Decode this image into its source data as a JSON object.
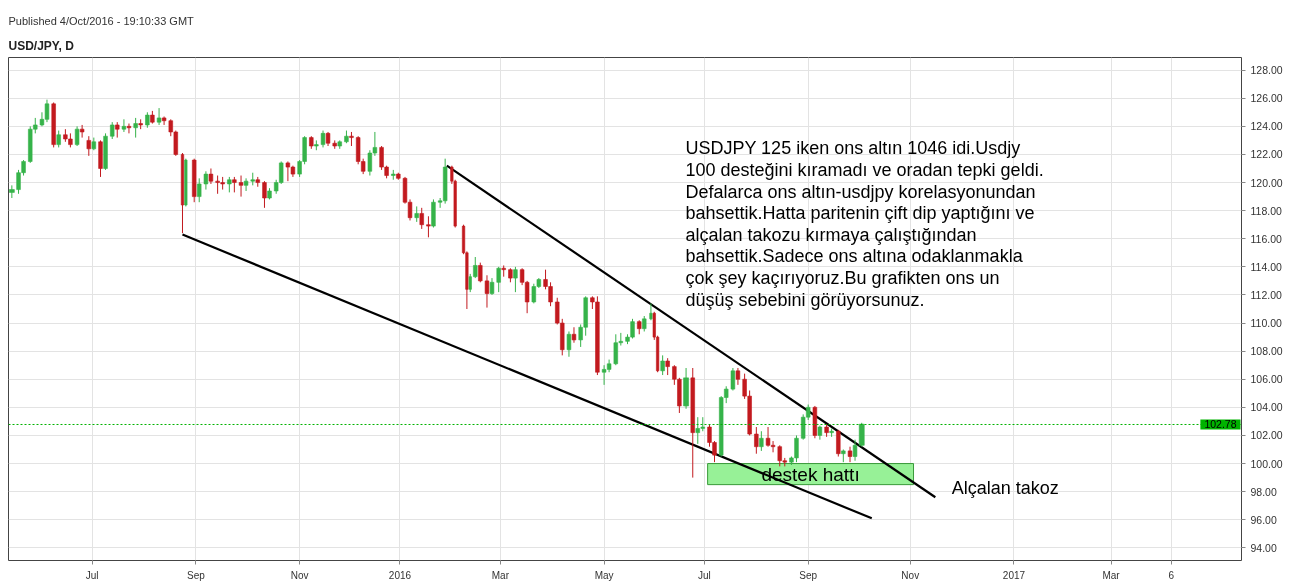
{
  "chart_data": {
    "type": "candlestick",
    "title": "USD/JPY, D",
    "annotations": [
      "Published 4/Oct/2016 - 19:10:33 GMT",
      "USDJPY 125 iken ons altın 1046 idi.Usdjy\n100 desteğini kıramadı ve oradan tepki geldi.\nDefalarca ons altın-usdjpy korelasyonundan\nbahsettik.Hatta paritenin çift dip yaptığını ve\nalçalan takozu kırmaya çalıştığından\nbahsettik.Sadece ons altına odaklanmakla\nçok şey kaçırıyoruz.Bu grafikten ons un\ndüşüş  sebebini görüyorsunuz.",
      "Alçalan takoz"
    ],
    "x": [
      "2015-05-14",
      "2015-05-18",
      "2015-05-21",
      "2015-05-25",
      "2015-05-28",
      "2015-06-01",
      "2015-06-04",
      "2015-06-08",
      "2015-06-11",
      "2015-06-15",
      "2015-06-18",
      "2015-06-22",
      "2015-06-25",
      "2015-06-29",
      "2015-07-02",
      "2015-07-06",
      "2015-07-09",
      "2015-07-13",
      "2015-07-16",
      "2015-07-20",
      "2015-07-23",
      "2015-07-27",
      "2015-07-30",
      "2015-08-03",
      "2015-08-06",
      "2015-08-10",
      "2015-08-13",
      "2015-08-17",
      "2015-08-20",
      "2015-08-24",
      "2015-08-26",
      "2015-08-31",
      "2015-09-03",
      "2015-09-07",
      "2015-09-10",
      "2015-09-14",
      "2015-09-17",
      "2015-09-21",
      "2015-09-24",
      "2015-09-28",
      "2015-10-01",
      "2015-10-05",
      "2015-10-08",
      "2015-10-12",
      "2015-10-15",
      "2015-10-19",
      "2015-10-22",
      "2015-10-26",
      "2015-10-29",
      "2015-11-02",
      "2015-11-05",
      "2015-11-09",
      "2015-11-12",
      "2015-11-16",
      "2015-11-19",
      "2015-11-23",
      "2015-11-26",
      "2015-11-30",
      "2015-12-03",
      "2015-12-07",
      "2015-12-10",
      "2015-12-14",
      "2015-12-17",
      "2015-12-21",
      "2015-12-24",
      "2015-12-28",
      "2015-12-31",
      "2016-01-04",
      "2016-01-07",
      "2016-01-11",
      "2016-01-14",
      "2016-01-18",
      "2016-01-21",
      "2016-01-25",
      "2016-01-28",
      "2016-02-01",
      "2016-02-03",
      "2016-02-08",
      "2016-02-10",
      "2016-02-12",
      "2016-02-15",
      "2016-02-18",
      "2016-02-22",
      "2016-02-25",
      "2016-02-29",
      "2016-03-03",
      "2016-03-07",
      "2016-03-10",
      "2016-03-14",
      "2016-03-17",
      "2016-03-21",
      "2016-03-24",
      "2016-03-28",
      "2016-03-31",
      "2016-04-04",
      "2016-04-07",
      "2016-04-11",
      "2016-04-14",
      "2016-04-18",
      "2016-04-21",
      "2016-04-25",
      "2016-04-28",
      "2016-05-02",
      "2016-05-05",
      "2016-05-09",
      "2016-05-12",
      "2016-05-16",
      "2016-05-19",
      "2016-05-23",
      "2016-05-26",
      "2016-05-30",
      "2016-06-01",
      "2016-06-03",
      "2016-06-06",
      "2016-06-09",
      "2016-06-13",
      "2016-06-16",
      "2016-06-20",
      "2016-06-24",
      "2016-06-27",
      "2016-06-30",
      "2016-07-04",
      "2016-07-07",
      "2016-07-11",
      "2016-07-14",
      "2016-07-18",
      "2016-07-21",
      "2016-07-25",
      "2016-07-28",
      "2016-08-01",
      "2016-08-04",
      "2016-08-08",
      "2016-08-11",
      "2016-08-15",
      "2016-08-18",
      "2016-08-22",
      "2016-08-25",
      "2016-08-29",
      "2016-09-01",
      "2016-09-05",
      "2016-09-08",
      "2016-09-12",
      "2016-09-15",
      "2016-09-19",
      "2016-09-22",
      "2016-09-26",
      "2016-09-29",
      "2016-10-03"
    ],
    "ohlc": [
      [
        119.3,
        119.8,
        118.9,
        119.5
      ],
      [
        119.5,
        120.9,
        119.2,
        120.7
      ],
      [
        120.7,
        121.6,
        120.5,
        121.5
      ],
      [
        121.5,
        124.0,
        121.4,
        123.8
      ],
      [
        123.8,
        124.6,
        123.5,
        124.1
      ],
      [
        124.1,
        125.0,
        124.0,
        124.5
      ],
      [
        124.5,
        125.9,
        124.3,
        125.6
      ],
      [
        125.6,
        125.7,
        122.5,
        122.7
      ],
      [
        122.7,
        123.7,
        122.5,
        123.4
      ],
      [
        123.4,
        123.8,
        122.9,
        123.1
      ],
      [
        123.1,
        123.5,
        122.5,
        122.7
      ],
      [
        122.7,
        124.0,
        122.6,
        123.8
      ],
      [
        123.8,
        124.1,
        123.2,
        123.6
      ],
      [
        123.0,
        123.3,
        121.9,
        122.4
      ],
      [
        122.4,
        123.2,
        122.3,
        122.9
      ],
      [
        122.9,
        123.0,
        120.4,
        121.0
      ],
      [
        121.0,
        123.5,
        120.9,
        123.3
      ],
      [
        123.3,
        124.3,
        123.1,
        124.1
      ],
      [
        124.1,
        124.3,
        123.2,
        123.8
      ],
      [
        123.8,
        124.5,
        123.6,
        124.0
      ],
      [
        124.0,
        124.2,
        123.5,
        123.9
      ],
      [
        123.9,
        124.6,
        123.2,
        124.2
      ],
      [
        124.2,
        124.5,
        123.8,
        124.1
      ],
      [
        124.1,
        125.0,
        123.9,
        124.8
      ],
      [
        124.8,
        125.1,
        124.2,
        124.3
      ],
      [
        124.3,
        125.3,
        124.1,
        124.6
      ],
      [
        124.6,
        124.7,
        124.1,
        124.4
      ],
      [
        124.4,
        124.5,
        123.3,
        123.6
      ],
      [
        123.6,
        123.7,
        121.9,
        122.0
      ],
      [
        122.0,
        122.1,
        116.4,
        118.4
      ],
      [
        118.4,
        121.7,
        118.3,
        121.6
      ],
      [
        121.6,
        121.7,
        118.6,
        119.0
      ],
      [
        119.0,
        120.3,
        118.6,
        119.9
      ],
      [
        119.9,
        120.8,
        119.5,
        120.6
      ],
      [
        120.6,
        121.0,
        119.9,
        120.1
      ],
      [
        120.1,
        120.5,
        119.2,
        120.0
      ],
      [
        120.0,
        120.4,
        119.5,
        119.9
      ],
      [
        119.9,
        120.4,
        119.3,
        120.2
      ],
      [
        120.2,
        120.4,
        119.3,
        120.0
      ],
      [
        120.0,
        120.5,
        119.0,
        119.8
      ],
      [
        119.8,
        120.3,
        119.4,
        120.1
      ],
      [
        120.1,
        120.7,
        119.8,
        120.2
      ],
      [
        120.2,
        120.4,
        119.7,
        120.0
      ],
      [
        120.0,
        120.1,
        118.2,
        118.9
      ],
      [
        118.9,
        119.6,
        118.8,
        119.4
      ],
      [
        119.4,
        120.2,
        119.2,
        120.0
      ],
      [
        120.0,
        121.5,
        119.9,
        121.4
      ],
      [
        121.4,
        121.5,
        120.1,
        121.1
      ],
      [
        121.1,
        121.2,
        120.4,
        120.6
      ],
      [
        120.6,
        121.6,
        120.4,
        121.5
      ],
      [
        121.5,
        123.3,
        121.3,
        123.2
      ],
      [
        123.2,
        123.3,
        122.4,
        122.6
      ],
      [
        122.6,
        123.0,
        122.3,
        122.7
      ],
      [
        122.7,
        123.7,
        122.5,
        123.5
      ],
      [
        123.5,
        123.6,
        122.6,
        122.8
      ],
      [
        122.8,
        123.0,
        122.4,
        122.6
      ],
      [
        122.6,
        123.0,
        122.4,
        122.9
      ],
      [
        122.9,
        123.7,
        122.8,
        123.3
      ],
      [
        123.3,
        123.6,
        122.6,
        123.2
      ],
      [
        123.2,
        123.3,
        121.3,
        121.5
      ],
      [
        121.5,
        121.7,
        120.6,
        120.8
      ],
      [
        120.8,
        122.3,
        120.5,
        122.1
      ],
      [
        122.1,
        123.6,
        121.9,
        122.5
      ],
      [
        122.5,
        122.6,
        120.9,
        121.1
      ],
      [
        121.1,
        121.2,
        120.3,
        120.5
      ],
      [
        120.5,
        120.9,
        120.2,
        120.6
      ],
      [
        120.6,
        120.7,
        120.2,
        120.3
      ],
      [
        120.3,
        120.4,
        118.5,
        118.6
      ],
      [
        118.6,
        118.8,
        117.3,
        117.5
      ],
      [
        117.5,
        118.3,
        117.2,
        117.8
      ],
      [
        117.8,
        118.2,
        116.7,
        117.0
      ],
      [
        117.0,
        117.6,
        116.1,
        116.9
      ],
      [
        116.9,
        118.8,
        116.8,
        118.6
      ],
      [
        118.6,
        118.9,
        118.2,
        118.7
      ],
      [
        118.7,
        121.7,
        118.5,
        121.1
      ],
      [
        121.1,
        121.2,
        119.9,
        120.1
      ],
      [
        120.1,
        120.2,
        116.8,
        116.9
      ],
      [
        116.9,
        117.0,
        114.9,
        115.0
      ],
      [
        115.0,
        115.1,
        111.0,
        112.4
      ],
      [
        112.4,
        113.5,
        112.2,
        113.3
      ],
      [
        113.3,
        114.7,
        113.2,
        114.1
      ],
      [
        114.1,
        114.3,
        112.9,
        113.0
      ],
      [
        113.0,
        113.4,
        111.1,
        112.1
      ],
      [
        112.1,
        113.2,
        112.0,
        112.9
      ],
      [
        112.9,
        114.0,
        112.2,
        113.9
      ],
      [
        113.9,
        114.1,
        113.3,
        113.8
      ],
      [
        113.8,
        113.9,
        112.9,
        113.2
      ],
      [
        113.2,
        114.0,
        112.2,
        113.8
      ],
      [
        113.8,
        113.9,
        112.7,
        112.9
      ],
      [
        112.9,
        113.0,
        110.7,
        111.5
      ],
      [
        111.5,
        112.8,
        111.4,
        112.6
      ],
      [
        112.6,
        113.2,
        112.5,
        113.1
      ],
      [
        113.1,
        113.8,
        112.4,
        112.6
      ],
      [
        112.6,
        112.9,
        111.2,
        111.5
      ],
      [
        111.5,
        111.8,
        109.9,
        110.0
      ],
      [
        110.0,
        110.3,
        107.7,
        108.1
      ],
      [
        108.1,
        109.4,
        107.6,
        109.2
      ],
      [
        109.2,
        109.7,
        108.6,
        108.8
      ],
      [
        108.8,
        109.9,
        108.3,
        109.7
      ],
      [
        109.7,
        111.9,
        109.1,
        111.8
      ],
      [
        111.8,
        111.9,
        111.0,
        111.5
      ],
      [
        111.5,
        111.9,
        106.3,
        106.5
      ],
      [
        106.5,
        107.0,
        105.6,
        106.7
      ],
      [
        106.7,
        107.4,
        106.5,
        107.1
      ],
      [
        107.1,
        109.2,
        107.0,
        108.6
      ],
      [
        108.6,
        109.3,
        108.4,
        108.7
      ],
      [
        108.7,
        109.2,
        108.5,
        109.0
      ],
      [
        109.0,
        110.3,
        108.9,
        110.1
      ],
      [
        110.1,
        110.2,
        109.2,
        109.6
      ],
      [
        109.6,
        110.5,
        109.4,
        110.3
      ],
      [
        110.3,
        111.4,
        110.2,
        110.7
      ],
      [
        110.7,
        110.8,
        108.8,
        109.0
      ],
      [
        109.0,
        109.1,
        106.5,
        106.6
      ],
      [
        106.6,
        107.7,
        106.3,
        107.3
      ],
      [
        107.3,
        107.5,
        106.3,
        106.9
      ],
      [
        106.9,
        107.0,
        105.6,
        106.0
      ],
      [
        106.0,
        106.1,
        103.6,
        104.1
      ],
      [
        104.1,
        106.8,
        103.9,
        106.1
      ],
      [
        106.1,
        106.8,
        99.0,
        102.2
      ],
      [
        102.2,
        103.3,
        101.4,
        102.5
      ],
      [
        102.5,
        103.3,
        102.3,
        102.6
      ],
      [
        102.6,
        102.8,
        101.2,
        101.5
      ],
      [
        101.5,
        101.6,
        100.1,
        100.6
      ],
      [
        100.6,
        104.8,
        100.5,
        104.7
      ],
      [
        104.7,
        105.5,
        104.3,
        105.3
      ],
      [
        105.3,
        106.8,
        105.2,
        106.6
      ],
      [
        106.6,
        106.8,
        105.6,
        106.0
      ],
      [
        106.0,
        106.4,
        104.6,
        104.8
      ],
      [
        104.8,
        105.2,
        102.0,
        102.1
      ],
      [
        102.1,
        102.6,
        100.7,
        101.2
      ],
      [
        101.2,
        102.3,
        100.9,
        101.8
      ],
      [
        101.8,
        102.6,
        101.2,
        101.3
      ],
      [
        101.3,
        101.6,
        100.8,
        101.2
      ],
      [
        101.2,
        101.3,
        99.8,
        100.2
      ],
      [
        100.2,
        100.4,
        99.8,
        100.1
      ],
      [
        100.1,
        100.5,
        99.9,
        100.4
      ],
      [
        100.4,
        102.0,
        100.1,
        101.8
      ],
      [
        101.8,
        103.5,
        101.7,
        103.3
      ],
      [
        103.3,
        104.2,
        103.1,
        104.0
      ],
      [
        104.0,
        104.1,
        101.8,
        102.0
      ],
      [
        102.0,
        102.7,
        101.7,
        102.6
      ],
      [
        102.6,
        102.8,
        101.9,
        102.2
      ],
      [
        102.2,
        102.5,
        101.9,
        102.3
      ],
      [
        102.3,
        102.4,
        100.5,
        100.7
      ],
      [
        100.7,
        101.0,
        100.1,
        100.9
      ],
      [
        100.9,
        101.2,
        100.1,
        100.5
      ],
      [
        100.5,
        101.7,
        100.2,
        101.3
      ],
      [
        101.3,
        102.9,
        101.2,
        102.8
      ]
    ],
    "colors": [
      "#36b34a",
      "#36b34a",
      "#36b34a",
      "#36b34a",
      "#36b34a",
      "#36b34a",
      "#36b34a",
      "#c21a1f",
      "#36b34a",
      "#c21a1f",
      "#c21a1f",
      "#36b34a",
      "#c21a1f",
      "#c21a1f",
      "#36b34a",
      "#c21a1f",
      "#36b34a",
      "#36b34a",
      "#c21a1f",
      "#36b34a",
      "#c21a1f",
      "#36b34a",
      "#c21a1f",
      "#36b34a",
      "#c21a1f",
      "#36b34a",
      "#c21a1f",
      "#c21a1f",
      "#c21a1f",
      "#c21a1f",
      "#36b34a",
      "#c21a1f",
      "#36b34a",
      "#36b34a",
      "#c21a1f",
      "#c21a1f",
      "#c21a1f",
      "#36b34a",
      "#c21a1f",
      "#c21a1f",
      "#36b34a",
      "#36b34a",
      "#c21a1f",
      "#c21a1f",
      "#36b34a",
      "#36b34a",
      "#36b34a",
      "#c21a1f",
      "#c21a1f",
      "#36b34a",
      "#36b34a",
      "#c21a1f",
      "#36b34a",
      "#36b34a",
      "#c21a1f",
      "#c21a1f",
      "#36b34a",
      "#36b34a",
      "#c21a1f",
      "#c21a1f",
      "#c21a1f",
      "#36b34a",
      "#36b34a",
      "#c21a1f",
      "#c21a1f",
      "#36b34a",
      "#c21a1f",
      "#c21a1f",
      "#c21a1f",
      "#36b34a",
      "#c21a1f",
      "#c21a1f",
      "#36b34a",
      "#36b34a",
      "#36b34a",
      "#c21a1f",
      "#c21a1f",
      "#c21a1f",
      "#c21a1f",
      "#36b34a",
      "#36b34a",
      "#c21a1f",
      "#c21a1f",
      "#36b34a",
      "#36b34a",
      "#c21a1f",
      "#c21a1f",
      "#36b34a",
      "#c21a1f",
      "#c21a1f",
      "#36b34a",
      "#36b34a",
      "#c21a1f",
      "#c21a1f",
      "#c21a1f",
      "#c21a1f",
      "#36b34a",
      "#c21a1f",
      "#36b34a",
      "#36b34a",
      "#c21a1f",
      "#c21a1f",
      "#36b34a",
      "#36b34a",
      "#36b34a",
      "#36b34a",
      "#36b34a",
      "#36b34a",
      "#c21a1f",
      "#36b34a",
      "#36b34a",
      "#c21a1f",
      "#c21a1f",
      "#36b34a",
      "#c21a1f",
      "#c21a1f",
      "#c21a1f",
      "#36b34a",
      "#c21a1f",
      "#36b34a",
      "#36b34a",
      "#c21a1f",
      "#c21a1f",
      "#36b34a",
      "#36b34a",
      "#36b34a",
      "#c21a1f",
      "#c21a1f",
      "#c21a1f",
      "#c21a1f",
      "#36b34a",
      "#c21a1f",
      "#c21a1f",
      "#c21a1f",
      "#c21a1f",
      "#36b34a",
      "#36b34a",
      "#36b34a",
      "#36b34a",
      "#c21a1f",
      "#36b34a",
      "#c21a1f",
      "#36b34a",
      "#c21a1f",
      "#36b34a",
      "#c21a1f",
      "#36b34a",
      "#36b34a"
    ],
    "series": [
      {
        "type": "line",
        "x": [
          "2015-08-24",
          "2016-10-09"
        ],
        "values": [
          116.3,
          96.1
        ],
        "color": "#000000"
      },
      {
        "type": "line",
        "x": [
          "2016-01-29",
          "2016-11-16"
        ],
        "values": [
          121.2,
          97.6
        ],
        "color": "#000000"
      }
    ],
    "ref_lines": [
      {
        "axis": "y",
        "value": 102.78,
        "label": "102.78",
        "color": "#00b300",
        "line_style": "dotted"
      }
    ],
    "bands": [
      {
        "axis": "y",
        "from": 98.5,
        "to": 100.0,
        "label": "destek hattı",
        "color": "#8cf08c"
      }
    ],
    "xlim": [
      "2015-05-12",
      "2017-05-18"
    ],
    "xticks": [
      {
        "value": "2015-07-01",
        "label": "Jul"
      },
      {
        "value": "2015-09-01",
        "label": "Sep"
      },
      {
        "value": "2015-11-02",
        "label": "Nov"
      },
      {
        "value": "2016-01-01",
        "label": "2016"
      },
      {
        "value": "2016-03-01",
        "label": "Mar"
      },
      {
        "value": "2016-05-02",
        "label": "May"
      },
      {
        "value": "2016-07-01",
        "label": "Jul"
      },
      {
        "value": "2016-09-01",
        "label": "Sep"
      },
      {
        "value": "2016-11-01",
        "label": "Nov"
      },
      {
        "value": "2017-01-02",
        "label": "2017"
      },
      {
        "value": "2017-03-01",
        "label": "Mar"
      },
      {
        "value": "2017-04-06",
        "label": "6"
      }
    ],
    "ylim": [
      93.1,
      128.9
    ],
    "yticks": [
      {
        "value": 94,
        "label": "94.00"
      },
      {
        "value": 96,
        "label": "96.00"
      },
      {
        "value": 98,
        "label": "98.00"
      },
      {
        "value": 100,
        "label": "100.00"
      },
      {
        "value": 102,
        "label": "102.00"
      },
      {
        "value": 104,
        "label": "104.00"
      },
      {
        "value": 106,
        "label": "106.00"
      },
      {
        "value": 108,
        "label": "108.00"
      },
      {
        "value": 110,
        "label": "110.00"
      },
      {
        "value": 112,
        "label": "112.00"
      },
      {
        "value": 114,
        "label": "114.00"
      },
      {
        "value": 116,
        "label": "116.00"
      },
      {
        "value": 118,
        "label": "118.00"
      },
      {
        "value": 120,
        "label": "120.00"
      },
      {
        "value": 122,
        "label": "122.00"
      },
      {
        "value": 124,
        "label": "124.00"
      },
      {
        "value": 126,
        "label": "126.00"
      },
      {
        "value": 128,
        "label": "128.00"
      }
    ],
    "grid": true
  }
}
